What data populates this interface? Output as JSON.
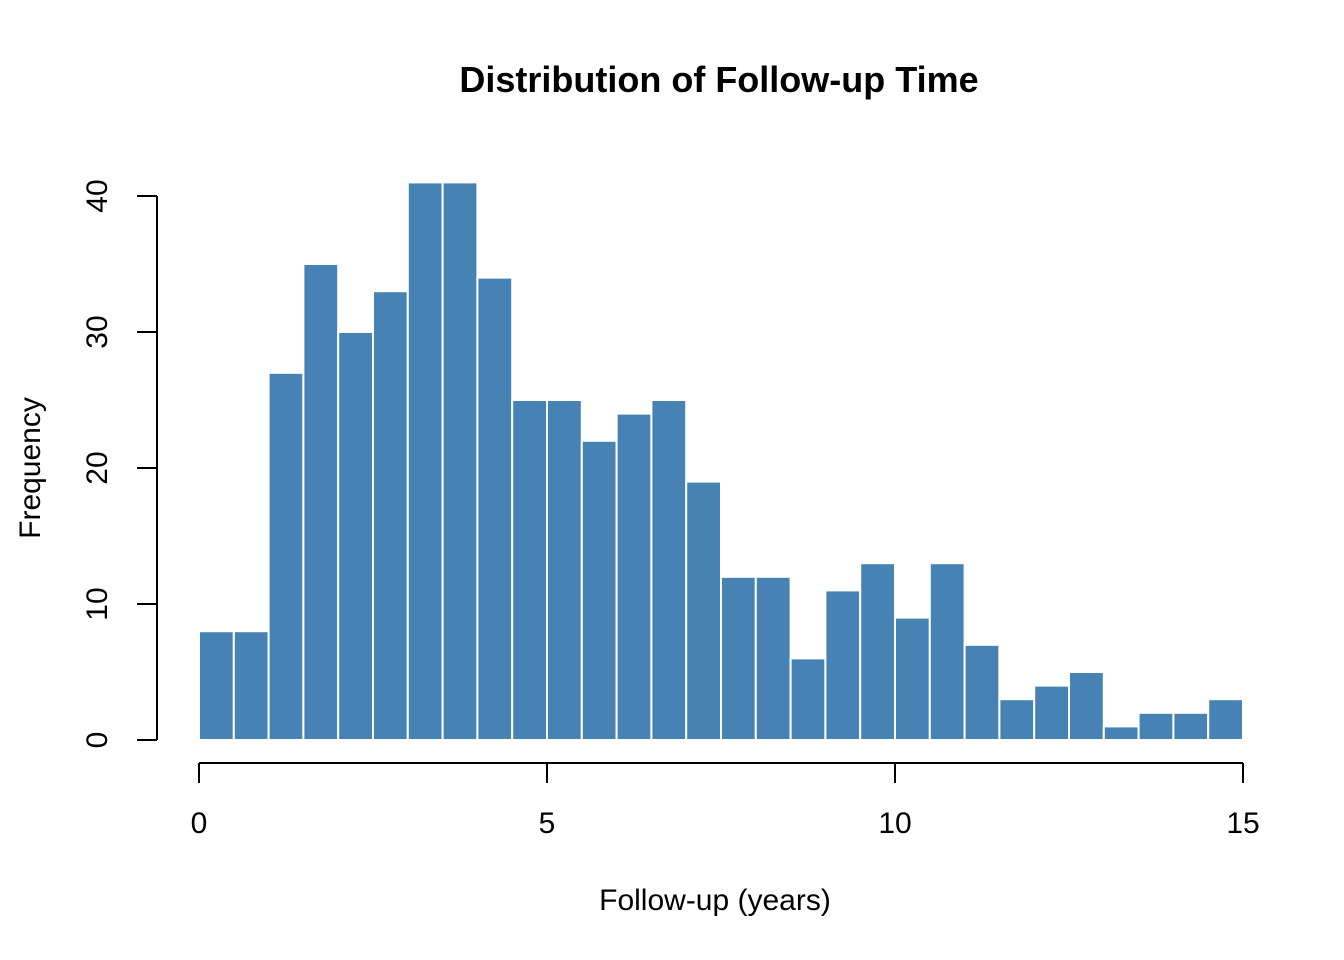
{
  "chart_data": {
    "type": "bar",
    "subtype": "histogram",
    "title": "Distribution of Follow-up Time",
    "xlabel": "Follow-up (years)",
    "ylabel": "Frequency",
    "bin_start": 0,
    "bin_width": 0.5,
    "counts": [
      8,
      8,
      27,
      35,
      30,
      33,
      41,
      41,
      34,
      25,
      25,
      22,
      24,
      25,
      19,
      12,
      12,
      6,
      11,
      13,
      9,
      13,
      7,
      3,
      4,
      5,
      1,
      2,
      2,
      3
    ],
    "x_ticks": [
      0,
      5,
      10,
      15
    ],
    "y_ticks": [
      0,
      10,
      20,
      30,
      40
    ],
    "xlim": [
      0,
      15
    ],
    "ylim": [
      0,
      40
    ],
    "grid": "off",
    "legend": "none",
    "bar_fill": "#4682B4",
    "bar_stroke": "#FFFFFF",
    "axis_color": "#000000",
    "text_color": "#000000",
    "background": "#FFFFFF"
  }
}
